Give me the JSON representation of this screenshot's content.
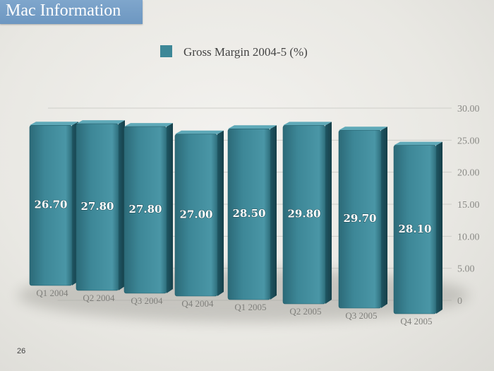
{
  "header": {
    "title": "Mac Information"
  },
  "footer": {
    "page_number": "26"
  },
  "colors": {
    "bar": "#3d8797",
    "bar_dark": "#1f5663",
    "title_bar": "#76a0c8",
    "tick_text": "#8a8a86"
  },
  "chart_data": {
    "type": "bar",
    "categories": [
      "Q1 2004",
      "Q2 2004",
      "Q3 2004",
      "Q4 2004",
      "Q1 2005",
      "Q2 2005",
      "Q3 2005",
      "Q4 2005"
    ],
    "series": [
      {
        "name": "Gross Margin 2004-5 (%)",
        "values": [
          26.7,
          27.8,
          27.8,
          27.0,
          28.5,
          29.8,
          29.7,
          28.1
        ]
      }
    ],
    "value_labels": [
      "26.70",
      "27.80",
      "27.80",
      "27.00",
      "28.50",
      "29.80",
      "29.70",
      "28.10"
    ],
    "ylim": [
      0,
      30
    ],
    "y_ticks": [
      0,
      5,
      10,
      15,
      20,
      25,
      30
    ],
    "y_tick_labels": [
      "0",
      "5.00",
      "10.00",
      "15.00",
      "20.00",
      "25.00",
      "30.00"
    ],
    "y_axis_position": "right",
    "legend": "top-center",
    "grid": true
  }
}
